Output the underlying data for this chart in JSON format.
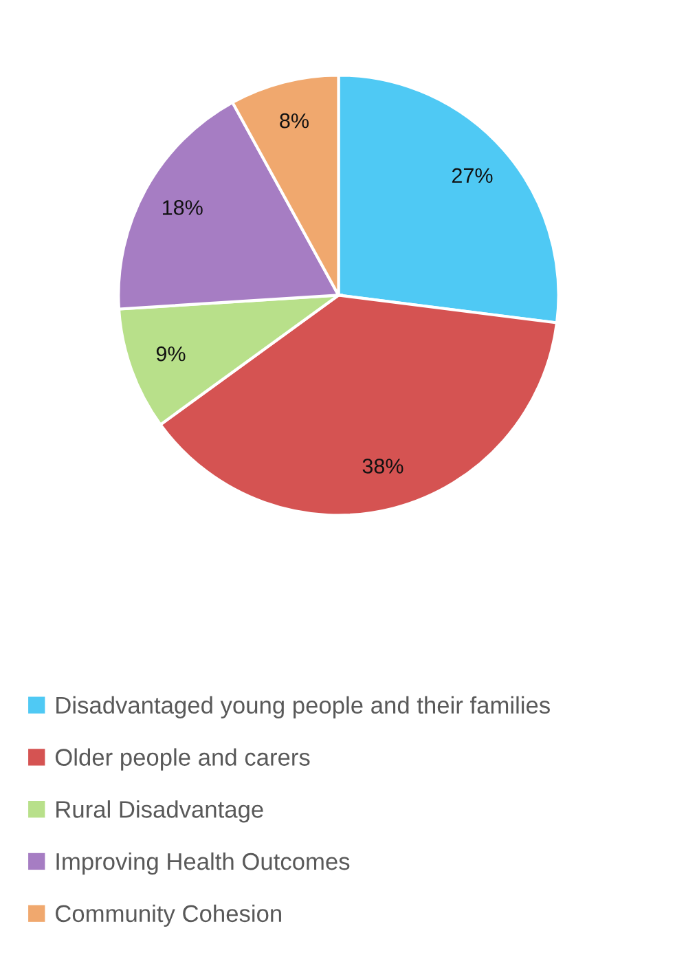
{
  "chart_data": {
    "type": "pie",
    "categories": [
      "Disadvantaged young people and their families",
      "Older people and carers",
      "Rural Disadvantage",
      "Improving Health Outcomes",
      "Community Cohesion"
    ],
    "values": [
      27,
      38,
      9,
      18,
      8
    ],
    "colors": [
      "#4fc9f4",
      "#d55352",
      "#b8e08a",
      "#a67dc3",
      "#f0a86e"
    ],
    "value_labels": [
      "27%",
      "38%",
      "9%",
      "18%",
      "8%"
    ],
    "legend": "bottom"
  }
}
